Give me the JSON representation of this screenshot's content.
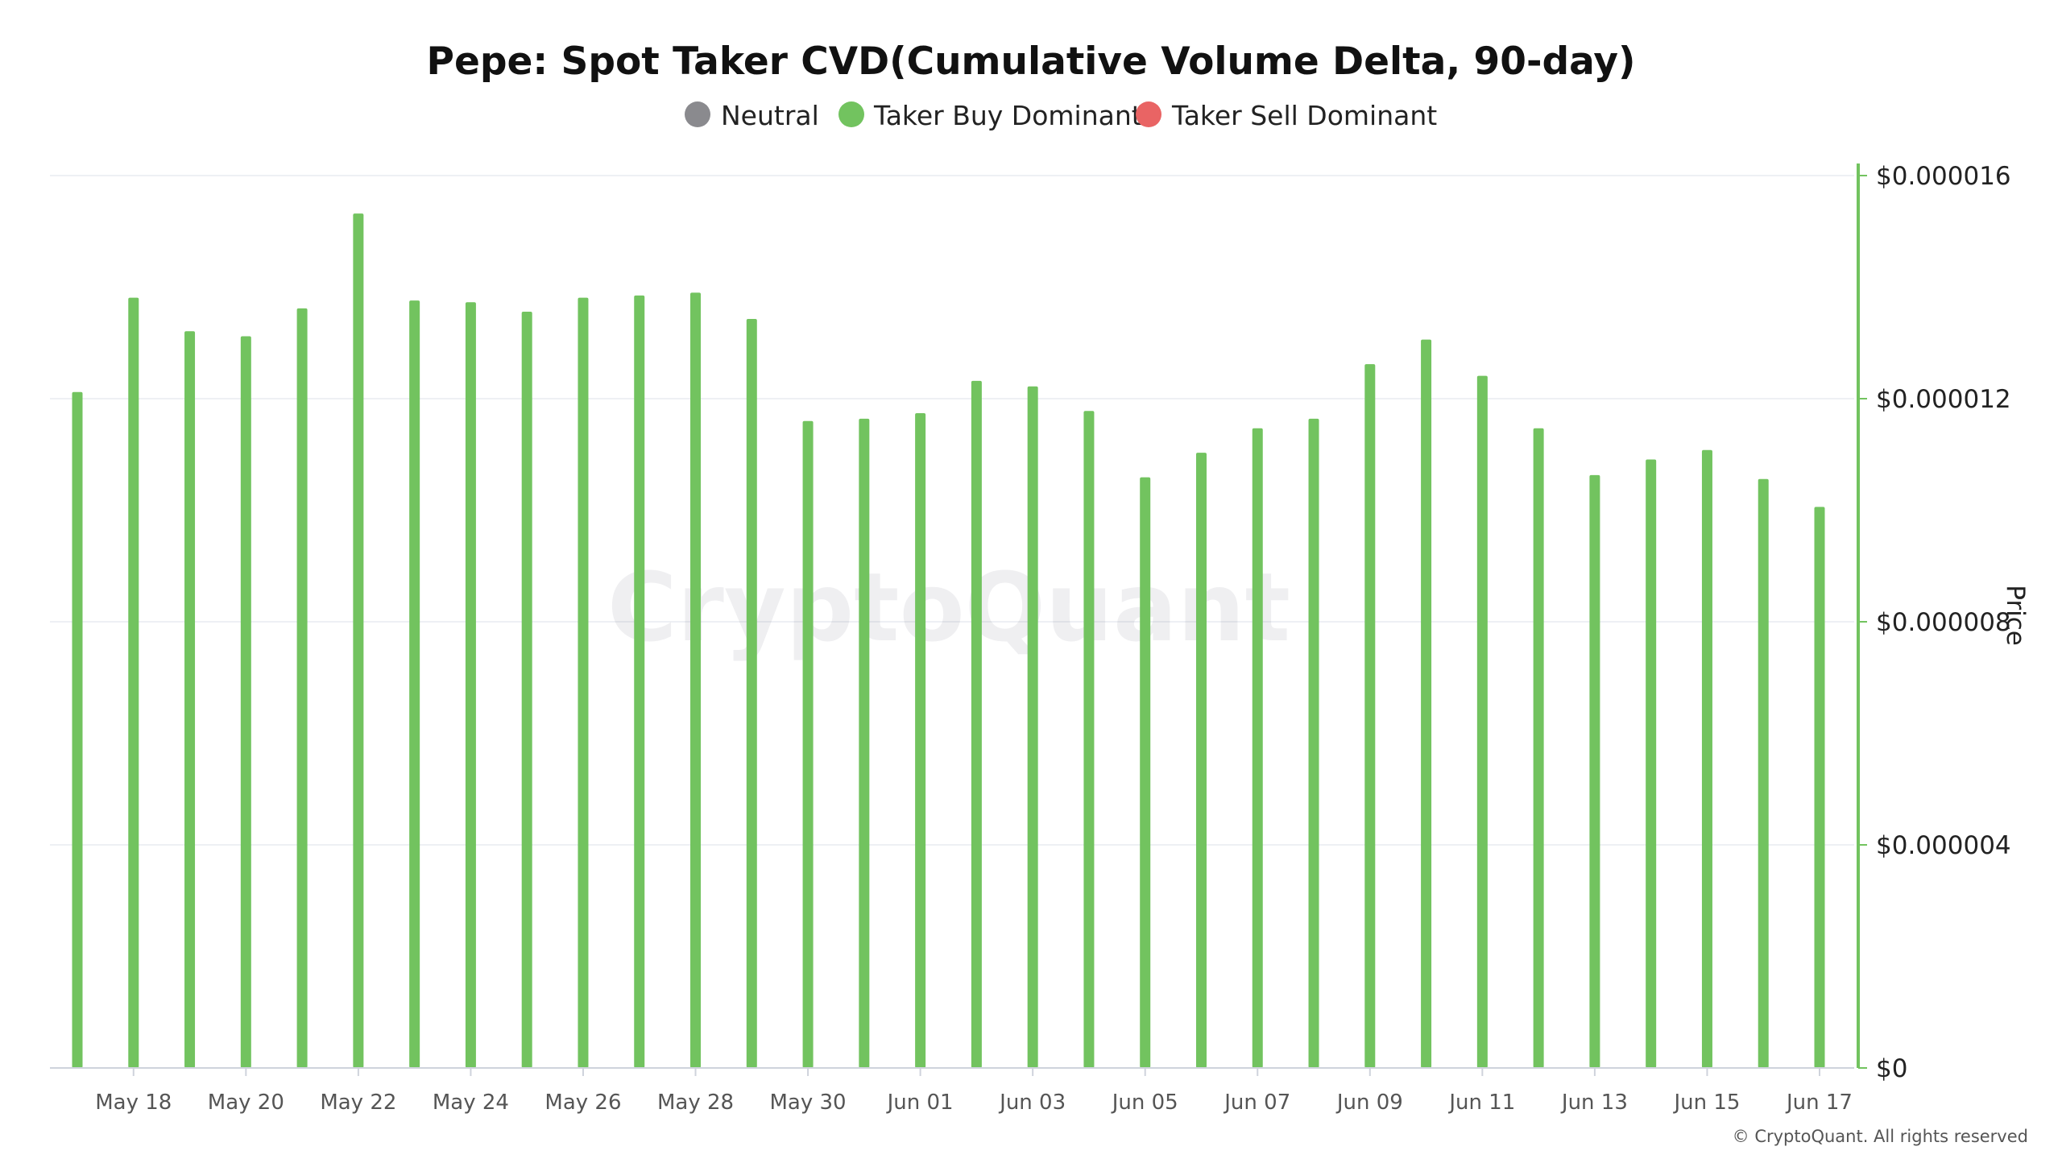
{
  "chart_data": {
    "type": "bar",
    "title": "Pepe: Spot Taker CVD(Cumulative Volume Delta, 90-day)",
    "legend": [
      {
        "label": "Neutral",
        "color": "#8a8a8e"
      },
      {
        "label": "Taker Buy Dominant",
        "color": "#72c35f"
      },
      {
        "label": "Taker Sell Dominant",
        "color": "#e96464"
      }
    ],
    "legend_position": "top-center",
    "ylabel": "Price",
    "y_axis_side": "right",
    "ylim": [
      0,
      1.6e-05
    ],
    "y_ticks": [
      {
        "value": 0,
        "label": "$0"
      },
      {
        "value": 4e-06,
        "label": "$0.000004"
      },
      {
        "value": 8e-06,
        "label": "$0.000008"
      },
      {
        "value": 1.2e-05,
        "label": "$0.000012"
      },
      {
        "value": 1.6e-05,
        "label": "$0.000016"
      }
    ],
    "x_tick_labels": [
      "May 18",
      "May 20",
      "May 22",
      "May 24",
      "May 26",
      "May 28",
      "May 30",
      "Jun 01",
      "Jun 03",
      "Jun 05",
      "Jun 07",
      "Jun 09",
      "Jun 11",
      "Jun 13",
      "Jun 15",
      "Jun 17"
    ],
    "grid": true,
    "bar_color": "#72c35f",
    "series": [
      {
        "categories": [
          "May 17",
          "May 18",
          "May 19",
          "May 20",
          "May 21",
          "May 22",
          "May 23",
          "May 24",
          "May 25",
          "May 26",
          "May 27",
          "May 28",
          "May 29",
          "May 30",
          "May 31",
          "Jun 01",
          "Jun 02",
          "Jun 03",
          "Jun 04",
          "Jun 05",
          "Jun 06",
          "Jun 07",
          "Jun 08",
          "Jun 09",
          "Jun 10",
          "Jun 11",
          "Jun 12",
          "Jun 13",
          "Jun 14",
          "Jun 15",
          "Jun 16",
          "Jun 17"
        ],
        "values": [
          1.212e-05,
          1.381e-05,
          1.321e-05,
          1.312e-05,
          1.362e-05,
          1.532e-05,
          1.376e-05,
          1.373e-05,
          1.356e-05,
          1.381e-05,
          1.385e-05,
          1.39e-05,
          1.343e-05,
          1.16e-05,
          1.164e-05,
          1.174e-05,
          1.232e-05,
          1.222e-05,
          1.178e-05,
          1.059e-05,
          1.103e-05,
          1.147e-05,
          1.164e-05,
          1.262e-05,
          1.306e-05,
          1.241e-05,
          1.147e-05,
          1.063e-05,
          1.091e-05,
          1.108e-05,
          1.056e-05,
          1.006e-05
        ]
      }
    ]
  },
  "watermark": "CryptoQuant",
  "copyright": "© CryptoQuant. All rights reserved"
}
